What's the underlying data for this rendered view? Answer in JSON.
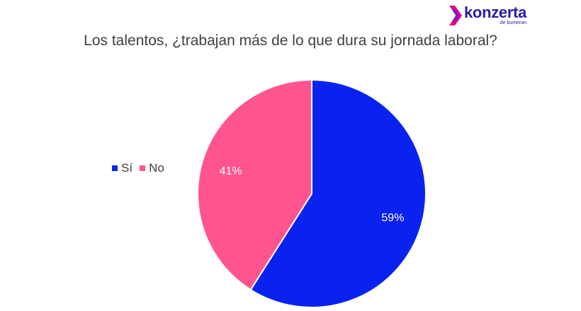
{
  "logo": {
    "word": "konzerta",
    "sub": "de bumeran",
    "mark_color": "#2b1aa8"
  },
  "chart_data": {
    "type": "pie",
    "title": "Los talentos, ¿trabajan más de lo que dura su jornada laboral?",
    "categories": [
      "Sí",
      "No"
    ],
    "values": [
      59,
      41
    ],
    "labels": [
      "59%",
      "41%"
    ],
    "colors": [
      "#0a22f0",
      "#ff5490"
    ],
    "legend_position": "left"
  }
}
